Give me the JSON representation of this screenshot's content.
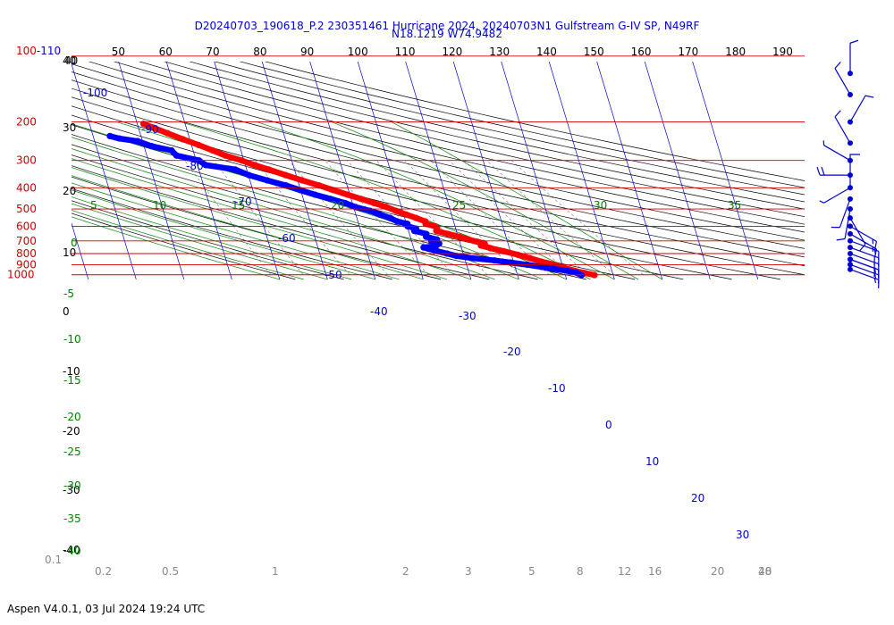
{
  "header": {
    "line1": "D20240703_190618_P.2 230351461 Hurricane 2024, 20240703N1 Gulfstream G-IV SP, N49RF",
    "line2": "N18.1219 W74.9482"
  },
  "footer": "Aspen V4.0.1, 03 Jul 2024  19:24 UTC",
  "chart_data": {
    "type": "line",
    "subtype": "skew-t log-p sounding",
    "top_label": "100-110",
    "pressure_levels": [
      "100",
      "200",
      "300",
      "400",
      "500",
      "600",
      "700",
      "800",
      "900",
      "1000"
    ],
    "top_theta_ticks": [
      "40",
      "50",
      "60",
      "70",
      "80",
      "90",
      "100",
      "110",
      "120",
      "130",
      "140",
      "150",
      "160",
      "170",
      "180",
      "190"
    ],
    "left_temp_ticks": [
      "40",
      "30",
      "20",
      "10",
      "0",
      "-10",
      "-20",
      "-30",
      "-40"
    ],
    "mixing_ratio_ticks_top": [
      "5",
      "10",
      "15",
      "20",
      "25",
      "30",
      "35"
    ],
    "mixing_ratio_ticks_left": [
      "0",
      "-5",
      "-10",
      "-15",
      "-20",
      "-25",
      "-30",
      "-35",
      "-40"
    ],
    "isotherm_labels": [
      "-100",
      "-90",
      "-80",
      "-70",
      "-60",
      "-50",
      "-40",
      "-30",
      "-20",
      "-10",
      "0",
      "10",
      "20",
      "30"
    ],
    "bottom_mixing_labels": [
      "0.1",
      "0.2",
      "0.5",
      "1",
      "2",
      "3",
      "5",
      "8",
      "12",
      "16",
      "20",
      "28",
      "40"
    ],
    "temperature_series": {
      "name": "Temperature",
      "color": "#ff0000",
      "p": [
        1003,
        980,
        960,
        930,
        900,
        870,
        840,
        810,
        780,
        755,
        735,
        720,
        705,
        690,
        670,
        650,
        630,
        615,
        600,
        585,
        570,
        550,
        530,
        510,
        490,
        470,
        450,
        430,
        410,
        390,
        370,
        350,
        330,
        315,
        300,
        285,
        270,
        255,
        240,
        225,
        212,
        204
      ],
      "t": [
        26.1,
        24.0,
        22.3,
        20.3,
        18.3,
        15.8,
        13.7,
        11.3,
        8.6,
        6.0,
        4.2,
        5.1,
        3.6,
        2.0,
        0.3,
        -2.0,
        -4.2,
        -3.9,
        -4.2,
        -6.0,
        -5.9,
        -7.6,
        -9.5,
        -11.4,
        -13.1,
        -15.5,
        -17.9,
        -20.5,
        -23.2,
        -25.9,
        -29.1,
        -32.2,
        -35.4,
        -38.1,
        -40.5,
        -43.6,
        -45.9,
        -48.5,
        -51.4,
        -54.3,
        -57.0,
        -58.7
      ]
    },
    "dewpoint_series": {
      "name": "Dew point",
      "color": "#0000ff",
      "p": [
        1003,
        980,
        960,
        940,
        920,
        900,
        880,
        860,
        840,
        820,
        800,
        780,
        760,
        750,
        740,
        720,
        700,
        690,
        670,
        650,
        630,
        615,
        600,
        585,
        570,
        550,
        530,
        510,
        490,
        470,
        450,
        430,
        410,
        390,
        370,
        350,
        330,
        315,
        300,
        285,
        270,
        258,
        245,
        238,
        232
      ],
      "td": [
        23.4,
        22.5,
        20.8,
        18.0,
        15.5,
        12.7,
        9.4,
        6.1,
        1.8,
        -1.6,
        -3.4,
        -5.3,
        -7.0,
        -7.9,
        -5.3,
        -4.4,
        -5.9,
        -4.6,
        -6.7,
        -6.5,
        -8.8,
        -8.3,
        -9.9,
        -9.8,
        -11.8,
        -13.0,
        -15.0,
        -16.8,
        -19.6,
        -21.5,
        -24.3,
        -27.3,
        -30.1,
        -32.8,
        -36.4,
        -39.9,
        -42.4,
        -48.3,
        -49.4,
        -53.8,
        -54.5,
        -58.4,
        -61.0,
        -64.7,
        -66.5
      ]
    },
    "winds": [
      {
        "p": 1000,
        "speed": 15,
        "dir": 110
      },
      {
        "p": 950,
        "speed": 15,
        "dir": 110
      },
      {
        "p": 900,
        "speed": 15,
        "dir": 110
      },
      {
        "p": 850,
        "speed": 20,
        "dir": 110
      },
      {
        "p": 800,
        "speed": 20,
        "dir": 110
      },
      {
        "p": 750,
        "speed": 20,
        "dir": 110
      },
      {
        "p": 700,
        "speed": 15,
        "dir": 110
      },
      {
        "p": 650,
        "speed": 15,
        "dir": 120
      },
      {
        "p": 600,
        "speed": 15,
        "dir": 120
      },
      {
        "p": 550,
        "speed": 10,
        "dir": 150
      },
      {
        "p": 500,
        "speed": 10,
        "dir": 190
      },
      {
        "p": 450,
        "speed": 10,
        "dir": 200
      },
      {
        "p": 400,
        "speed": 5,
        "dir": 240
      },
      {
        "p": 350,
        "speed": 20,
        "dir": 270
      },
      {
        "p": 300,
        "speed": 5,
        "dir": 300
      },
      {
        "p": 250,
        "speed": 10,
        "dir": 330
      },
      {
        "p": 200,
        "speed": 10,
        "dir": 30
      },
      {
        "p": 150,
        "speed": 10,
        "dir": 330
      },
      {
        "p": 120,
        "speed": 10,
        "dir": 360
      }
    ]
  }
}
